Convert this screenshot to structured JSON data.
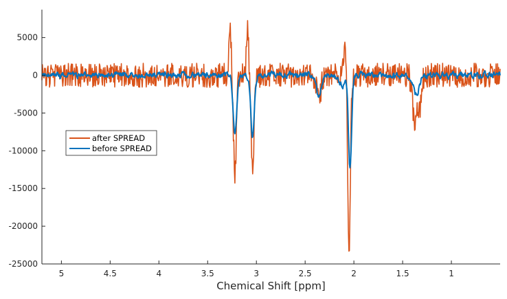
{
  "chart_data": {
    "type": "line",
    "title": "",
    "xlabel": "Chemical Shift [ppm]",
    "ylabel": "",
    "x_reversed": true,
    "xlim": [
      0.5,
      5.2
    ],
    "ylim": [
      -25000,
      8700
    ],
    "x_ticks": [
      5,
      4.5,
      4,
      3.5,
      3,
      2.5,
      2,
      1.5,
      1
    ],
    "x_tick_labels": [
      "5",
      "4.5",
      "4",
      "3.5",
      "3",
      "2.5",
      "2",
      "1.5",
      "1"
    ],
    "y_ticks": [
      5000,
      0,
      -5000,
      -10000,
      -15000,
      -20000,
      -25000
    ],
    "y_tick_labels": [
      "5000",
      "0",
      "-5000",
      "-10000",
      "-15000",
      "-20000",
      "-25000"
    ],
    "grid": false,
    "legend_position": "left",
    "series": [
      {
        "name": "after SPREAD",
        "color": "#D95319",
        "noise_amplitude": 1600,
        "seed": 7,
        "peaks": [
          {
            "ppm": 3.27,
            "height": 6600,
            "width": 0.012
          },
          {
            "ppm": 3.22,
            "height": -13200,
            "width": 0.015
          },
          {
            "ppm": 3.09,
            "height": 5800,
            "width": 0.012
          },
          {
            "ppm": 3.04,
            "height": -12800,
            "width": 0.015
          },
          {
            "ppm": 2.09,
            "height": 4400,
            "width": 0.012
          },
          {
            "ppm": 2.05,
            "height": -23800,
            "width": 0.013
          },
          {
            "ppm": 1.38,
            "height": -6000,
            "width": 0.02
          },
          {
            "ppm": 1.33,
            "height": -4500,
            "width": 0.02
          },
          {
            "ppm": 2.36,
            "height": -3500,
            "width": 0.02
          }
        ]
      },
      {
        "name": "before SPREAD",
        "color": "#0072BD",
        "noise_amplitude": 450,
        "seed": 3,
        "peaks": [
          {
            "ppm": 3.22,
            "height": -8000,
            "width": 0.018
          },
          {
            "ppm": 3.04,
            "height": -8000,
            "width": 0.018
          },
          {
            "ppm": 2.04,
            "height": -12500,
            "width": 0.016
          },
          {
            "ppm": 2.36,
            "height": -2700,
            "width": 0.025
          },
          {
            "ppm": 1.36,
            "height": -2500,
            "width": 0.03
          },
          {
            "ppm": 2.12,
            "height": -1300,
            "width": 0.03
          }
        ]
      }
    ]
  }
}
